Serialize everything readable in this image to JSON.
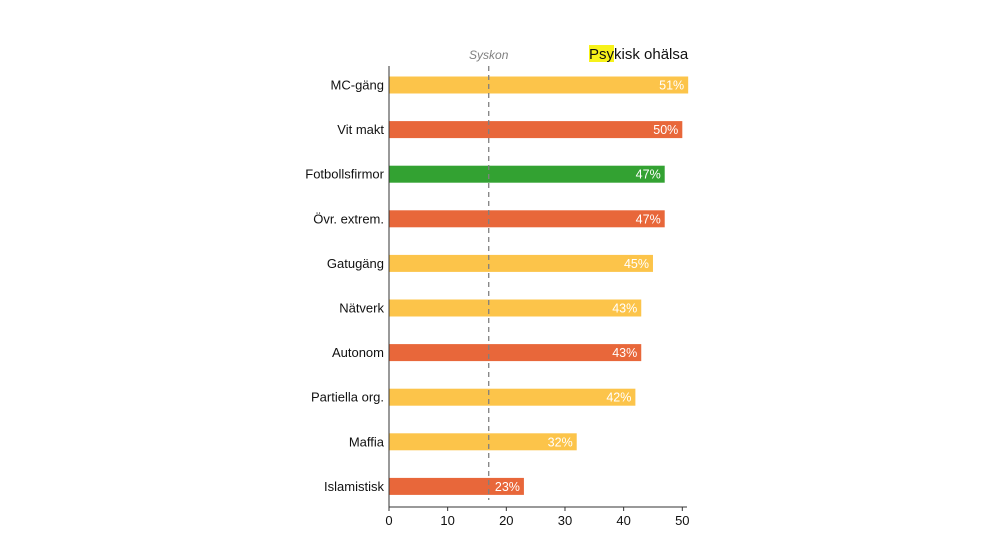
{
  "chart_data": {
    "type": "bar",
    "orientation": "horizontal",
    "title": "Psykisk ohälsa",
    "title_highlight": "Psy",
    "title_rest": "kisk ohälsa",
    "title_highlight_color": "#f7f21a",
    "categories": [
      "MC-gäng",
      "Vit makt",
      "Fotbollsfirmor",
      "Övr. extrem.",
      "Gatugäng",
      "Nätverk",
      "Autonom",
      "Partiella org.",
      "Maffia",
      "Islamistisk"
    ],
    "values": [
      51,
      50,
      47,
      47,
      45,
      43,
      43,
      42,
      32,
      23
    ],
    "value_labels": [
      "51%",
      "50%",
      "47%",
      "47%",
      "45%",
      "43%",
      "43%",
      "42%",
      "32%",
      "23%"
    ],
    "colors": [
      "#fcc44a",
      "#e8673a",
      "#33a232",
      "#e8673a",
      "#fcc44a",
      "#fcc44a",
      "#e8673a",
      "#fcc44a",
      "#fcc44a",
      "#e8673a"
    ],
    "xlim": [
      0,
      50.8
    ],
    "xticks": [
      0,
      10,
      20,
      30,
      40,
      50
    ],
    "xtick_labels": [
      "0",
      "10",
      "20",
      "30",
      "40",
      "50"
    ],
    "xlabel": "",
    "ylabel": "",
    "grid": false,
    "reference_line": {
      "label": "Syskon",
      "value": 17,
      "style": "dashed",
      "color": "#808080"
    }
  }
}
